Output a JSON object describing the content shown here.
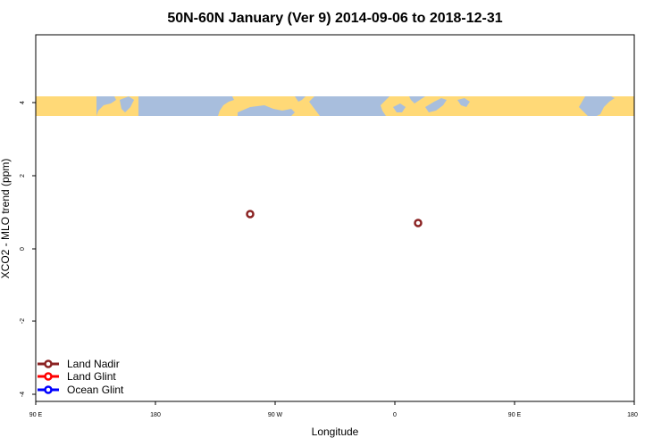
{
  "chart_data": {
    "type": "scatter",
    "title": "50N-60N January (Ver 9)   2014-09-06 to 2018-12-31",
    "xlabel": "Longitude",
    "ylabel": "XCO2 - MLO trend (ppm)",
    "x_ticks": [
      "90 E",
      "180",
      "90 W",
      "0",
      "90 E",
      "180"
    ],
    "y_ticks": [
      "-4",
      "-2",
      "0",
      "2",
      "4"
    ],
    "ylim": [
      -4,
      5.7
    ],
    "series": [
      {
        "name": "Land Nadir",
        "color": "#8B2323",
        "points": [
          {
            "x": "110 W",
            "y": 0.95
          },
          {
            "x": "20 E",
            "y": 0.72
          }
        ]
      },
      {
        "name": "Land Glint",
        "color": "#FF0000",
        "points": []
      },
      {
        "name": "Ocean Glint",
        "color": "#0000FF",
        "points": []
      }
    ],
    "legend_position": "bottom-left",
    "map_band": {
      "y_range": [
        3.63,
        4.17
      ],
      "land_color": "#FFD977",
      "ocean_color": "#A8BEDD"
    }
  }
}
